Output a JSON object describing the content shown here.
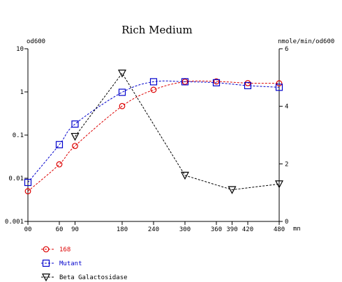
{
  "chart_data": {
    "type": "line",
    "title": "Rich Medium",
    "y_left_label": "od600",
    "y_right_label": "nmole/min/od600",
    "x_unit": "mn",
    "x_ticks": [
      0,
      60,
      90,
      180,
      240,
      300,
      360,
      390,
      420,
      480
    ],
    "x_tick_labels": [
      "00",
      "60",
      "90",
      "180",
      "240",
      "300",
      "360",
      "390",
      "420",
      "480"
    ],
    "xlim": [
      0,
      480
    ],
    "y_left_scale": "log",
    "y_left_ticks": [
      0.001,
      0.01,
      0.1,
      1,
      10
    ],
    "y_left_tick_labels": [
      "0.001",
      "0.01",
      "0.1",
      "1",
      "10"
    ],
    "y_left_lim": [
      0.001,
      10
    ],
    "y_right_ticks": [
      0,
      2,
      4,
      6
    ],
    "y_right_tick_labels": [
      "0",
      "2",
      "4",
      "6"
    ],
    "y_right_lim": [
      0,
      6
    ],
    "grid": false,
    "legend_position": "bottom-left",
    "series": [
      {
        "name": "168",
        "axis": "left",
        "marker": "circle",
        "color": "#dd0000",
        "x": [
          0,
          60,
          90,
          180,
          240,
          300,
          360,
          420,
          480
        ],
        "y": [
          0.005,
          0.021,
          0.056,
          0.47,
          1.12,
          1.72,
          1.75,
          1.6,
          1.58
        ]
      },
      {
        "name": "Mutant",
        "axis": "left",
        "marker": "square",
        "color": "#0000cc",
        "x": [
          0,
          60,
          90,
          180,
          240,
          300,
          360,
          420,
          480
        ],
        "y": [
          0.008,
          0.06,
          0.18,
          0.98,
          1.72,
          1.72,
          1.63,
          1.4,
          1.28
        ]
      },
      {
        "name": "Beta Galactosidase",
        "axis": "right",
        "marker": "triangle-down",
        "color": "#000000",
        "x": [
          90,
          180,
          300,
          390,
          480
        ],
        "y": [
          2.95,
          5.15,
          1.6,
          1.1,
          1.3
        ]
      }
    ]
  }
}
